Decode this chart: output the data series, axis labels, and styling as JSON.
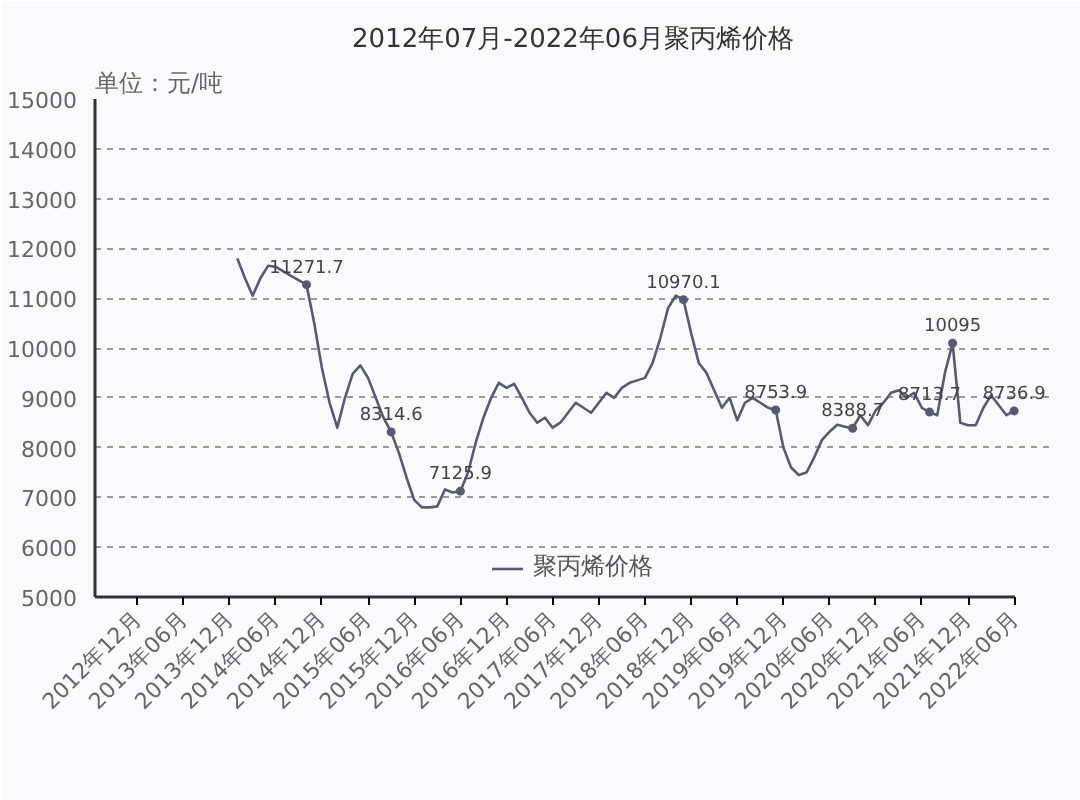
{
  "chart_data": {
    "type": "line",
    "title": "2012年07月-2022年06月聚丙烯价格",
    "annotations": [
      "单位：元/吨"
    ],
    "categories": [
      null,
      null,
      null,
      null,
      null,
      "2012年12月",
      null,
      null,
      null,
      null,
      null,
      "2013年06月",
      null,
      null,
      null,
      null,
      null,
      "2013年12月",
      null,
      null,
      null,
      null,
      null,
      "2014年06月",
      null,
      null,
      null,
      null,
      null,
      "2014年12月",
      null,
      null,
      null,
      null,
      null,
      "2015年06月",
      null,
      null,
      null,
      null,
      null,
      "2015年12月",
      null,
      null,
      null,
      null,
      null,
      "2016年06月",
      null,
      null,
      null,
      null,
      null,
      "2016年12月",
      null,
      null,
      null,
      null,
      null,
      "2017年06月",
      null,
      null,
      null,
      null,
      null,
      "2017年12月",
      null,
      null,
      null,
      null,
      null,
      "2018年06月",
      null,
      null,
      null,
      null,
      null,
      "2018年12月",
      null,
      null,
      null,
      null,
      null,
      "2019年06月",
      null,
      null,
      null,
      null,
      null,
      "2019年12月",
      null,
      null,
      null,
      null,
      null,
      "2020年06月",
      null,
      null,
      null,
      null,
      null,
      "2020年12月",
      null,
      null,
      null,
      null,
      null,
      "2021年06月",
      null,
      null,
      null,
      null,
      null,
      "2021年12月",
      null,
      null,
      null,
      null,
      null,
      "2022年06月"
    ],
    "series": [
      {
        "name": "聚丙烯价格",
        "color": "#5a5a6a",
        "values": [
          null,
          null,
          null,
          null,
          null,
          null,
          null,
          null,
          null,
          null,
          null,
          null,
          null,
          null,
          null,
          null,
          null,
          null,
          11800,
          11400,
          11050,
          11400,
          11650,
          11630,
          11540,
          11450,
          11360,
          11271.7,
          10500,
          9600,
          8900,
          8400,
          9000,
          9480,
          9650,
          9400,
          9000,
          8600,
          8314.6,
          7900,
          7400,
          6950,
          6800,
          6800,
          6820,
          7160,
          7100,
          7125.9,
          7500,
          8100,
          8600,
          9000,
          9300,
          9200,
          9280,
          9000,
          8700,
          8500,
          8600,
          8400,
          8500,
          8700,
          8900,
          8800,
          8700,
          8900,
          9100,
          9000,
          9200,
          9300,
          9350,
          9400,
          9700,
          10200,
          10800,
          11050,
          10970.1,
          10300,
          9700,
          9500,
          9150,
          8800,
          9000,
          8550,
          8900,
          9000,
          8900,
          8800,
          8753.9,
          8000,
          7600,
          7450,
          7500,
          7800,
          8150,
          8320,
          8460,
          8420,
          8388.7,
          8650,
          8450,
          8750,
          8900,
          9100,
          9150,
          9000,
          9100,
          8800,
          8713.7,
          8650,
          9500,
          10095,
          8500,
          8450,
          8450,
          8800,
          9050,
          8850,
          8650,
          8736.9
        ],
        "value_labels": [
          null,
          null,
          null,
          null,
          null,
          null,
          null,
          null,
          null,
          null,
          null,
          null,
          null,
          null,
          null,
          null,
          null,
          null,
          null,
          null,
          null,
          null,
          null,
          null,
          null,
          null,
          null,
          "11271.7",
          null,
          null,
          null,
          null,
          null,
          null,
          null,
          null,
          null,
          null,
          "8314.6",
          null,
          null,
          null,
          null,
          null,
          null,
          null,
          null,
          "7125.9",
          null,
          null,
          null,
          null,
          null,
          null,
          null,
          null,
          null,
          null,
          null,
          null,
          null,
          null,
          null,
          null,
          null,
          null,
          null,
          null,
          null,
          null,
          null,
          null,
          null,
          null,
          null,
          null,
          "10970.1",
          null,
          null,
          null,
          null,
          null,
          null,
          null,
          null,
          null,
          null,
          null,
          "8753.9",
          null,
          null,
          null,
          null,
          null,
          null,
          null,
          null,
          null,
          "8388.7",
          null,
          null,
          null,
          null,
          null,
          null,
          null,
          null,
          null,
          "8713.7",
          null,
          null,
          "10095",
          null,
          null,
          null,
          null,
          null,
          null,
          null,
          "8736.9"
        ]
      }
    ],
    "ylim": [
      5000,
      15000
    ],
    "yticks": [
      5000,
      6000,
      7000,
      8000,
      9000,
      10000,
      11000,
      12000,
      13000,
      14000,
      15000
    ],
    "grid": "y",
    "legend": "bottom"
  }
}
